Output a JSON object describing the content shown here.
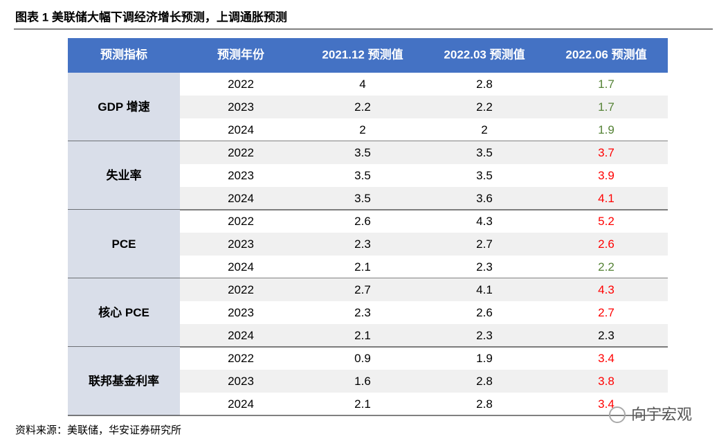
{
  "header": {
    "title": "图表 1 美联储大幅下调经济增长预测，上调通胀预测"
  },
  "table": {
    "columns": [
      "预测指标",
      "预测年份",
      "2021.12 预测值",
      "2022.03 预测值",
      "2022.06 预测值"
    ],
    "groups": [
      {
        "label": "GDP 增速",
        "rows": [
          {
            "year": 2022,
            "values": [
              4,
              2.8,
              1.7
            ],
            "color": "#548235"
          },
          {
            "year": 2023,
            "values": [
              2.2,
              2.2,
              1.7
            ],
            "color": "#548235"
          },
          {
            "year": 2024,
            "values": [
              2,
              2,
              1.9
            ],
            "color": "#548235"
          }
        ]
      },
      {
        "label": "失业率",
        "rows": [
          {
            "year": 2022,
            "values": [
              3.5,
              3.5,
              3.7
            ],
            "color": "#ff0000"
          },
          {
            "year": 2023,
            "values": [
              3.5,
              3.5,
              3.9
            ],
            "color": "#ff0000"
          },
          {
            "year": 2024,
            "values": [
              3.5,
              3.6,
              4.1
            ],
            "color": "#ff0000"
          }
        ]
      },
      {
        "label": "PCE",
        "rows": [
          {
            "year": 2022,
            "values": [
              2.6,
              4.3,
              5.2
            ],
            "color": "#ff0000"
          },
          {
            "year": 2023,
            "values": [
              2.3,
              2.7,
              2.6
            ],
            "color": "#ff0000"
          },
          {
            "year": 2024,
            "values": [
              2.1,
              2.3,
              2.2
            ],
            "color": "#548235"
          }
        ]
      },
      {
        "label": "核心 PCE",
        "rows": [
          {
            "year": 2022,
            "values": [
              2.7,
              4.1,
              4.3
            ],
            "color": "#ff0000"
          },
          {
            "year": 2023,
            "values": [
              2.3,
              2.6,
              2.7
            ],
            "color": "#ff0000"
          },
          {
            "year": 2024,
            "values": [
              2.1,
              2.3,
              2.3
            ],
            "color": "#000000"
          }
        ]
      },
      {
        "label": "联邦基金利率",
        "rows": [
          {
            "year": 2022,
            "values": [
              0.9,
              1.9,
              3.4
            ],
            "color": "#ff0000"
          },
          {
            "year": 2023,
            "values": [
              1.6,
              2.8,
              3.8
            ],
            "color": "#ff0000"
          },
          {
            "year": 2024,
            "values": [
              2.1,
              2.8,
              3.4
            ],
            "color": "#ff0000"
          }
        ]
      }
    ]
  },
  "footer": {
    "source": "资料来源：美联储，华安证券研究所",
    "watermark": "向宇宏观"
  }
}
